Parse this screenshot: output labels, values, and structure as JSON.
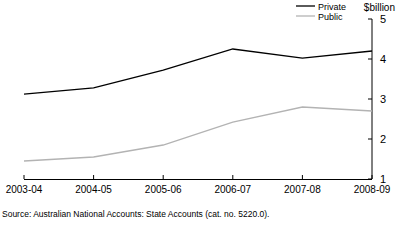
{
  "chart_data": {
    "type": "line",
    "y_label": "$billion",
    "source": "Source: Australian National Accounts: State Accounts (cat. no. 5220.0).",
    "categories": [
      "2003-04",
      "2004-05",
      "2005-06",
      "2006-07",
      "2007-08",
      "2008-09"
    ],
    "series": [
      {
        "name": "Private",
        "color": "#000000",
        "values": [
          3.12,
          3.28,
          3.72,
          4.25,
          4.02,
          4.2
        ]
      },
      {
        "name": "Public",
        "color": "#b3b3b3",
        "values": [
          1.45,
          1.55,
          1.85,
          2.42,
          2.8,
          2.7
        ]
      }
    ],
    "ylim": [
      1,
      5
    ],
    "yticks": [
      1,
      2,
      3,
      4,
      5
    ],
    "legend": "top-right"
  }
}
